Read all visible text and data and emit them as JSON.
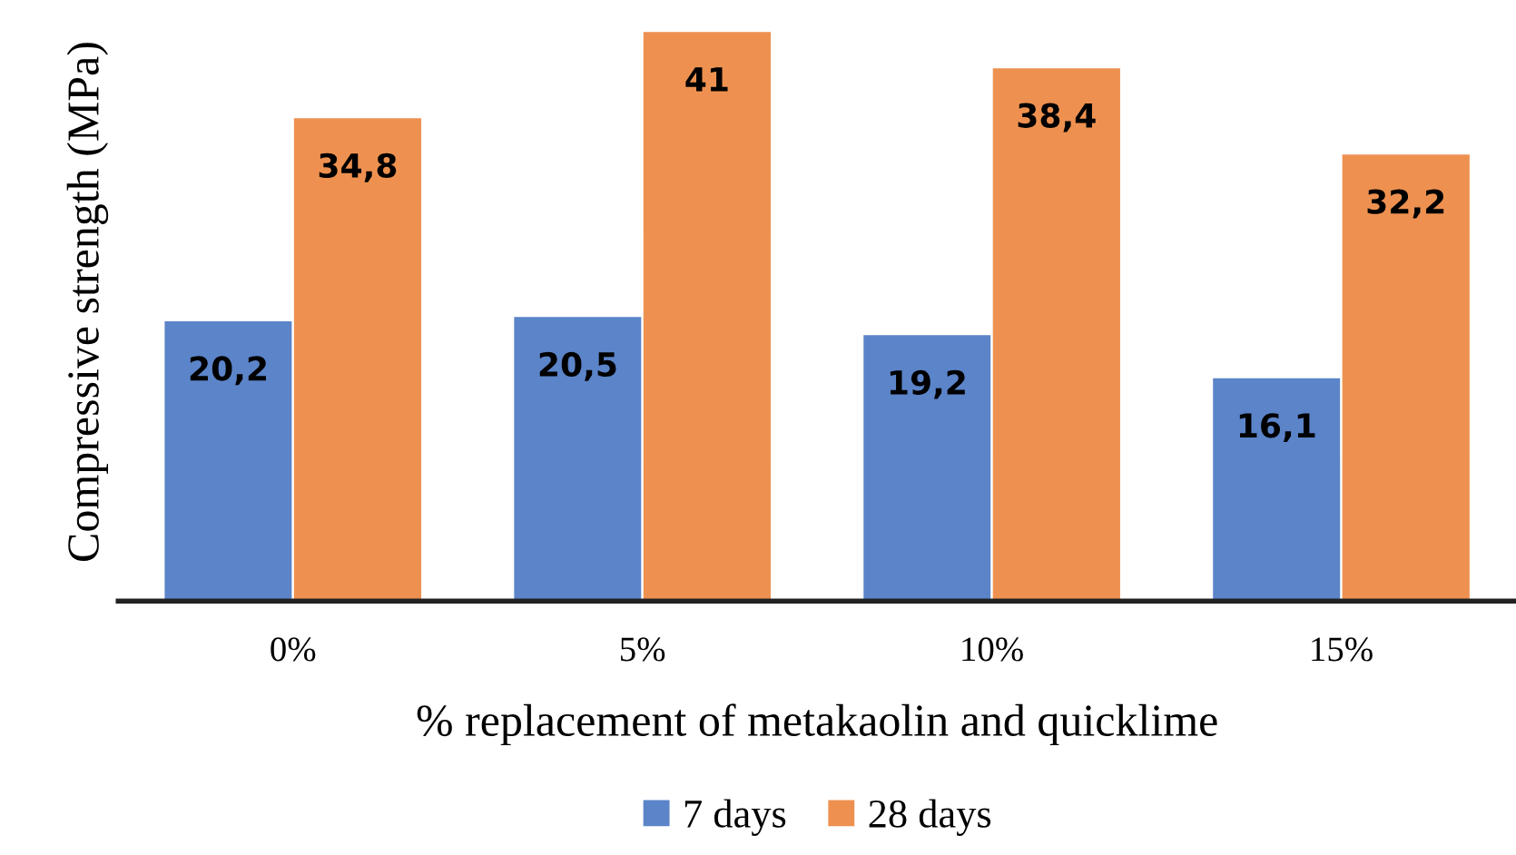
{
  "chart_data": {
    "type": "bar",
    "xlabel": "% replacement of metakaolin and quicklime",
    "ylabel": "Compressive strength (MPa)",
    "categories": [
      "0%",
      "5%",
      "10%",
      "15%"
    ],
    "series": [
      {
        "name": "7 days",
        "color": "#5b84c9",
        "values": [
          20.2,
          20.5,
          19.2,
          16.1
        ],
        "value_labels": [
          "20,2",
          "20,5",
          "19,2",
          "16,1"
        ]
      },
      {
        "name": "28 days",
        "color": "#ee9150",
        "values": [
          34.8,
          41,
          38.4,
          32.2
        ],
        "value_labels": [
          "34,8",
          "41",
          "38,4",
          "32,2"
        ]
      }
    ],
    "grid": false,
    "legend": "bottom"
  }
}
